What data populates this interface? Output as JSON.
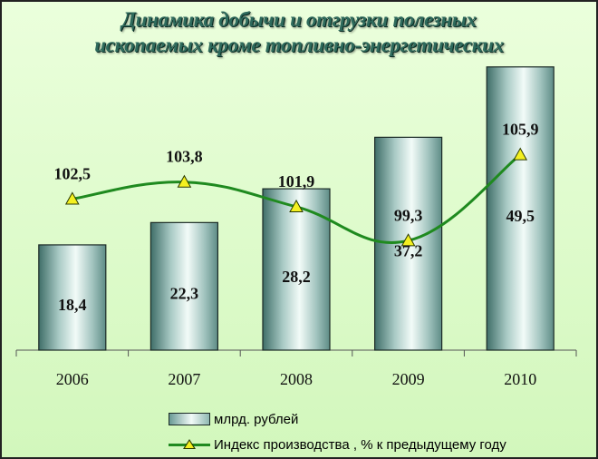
{
  "chart_data": {
    "title_line1": "Динамика добычи и отгрузки полезных",
    "title_line2": "ископаемых кроме топливно-энергетических",
    "type": "bar",
    "categories": [
      "2006",
      "2007",
      "2008",
      "2009",
      "2010"
    ],
    "bar_series": {
      "name": "млрд. рублей",
      "values": [
        18.4,
        22.3,
        28.2,
        37.2,
        49.5
      ],
      "labels": [
        "18,4",
        "22,3",
        "28,2",
        "37,2",
        "49,5"
      ]
    },
    "line_series": {
      "name": "Индекс производства , % к предыдущему году",
      "type": "line",
      "values": [
        102.5,
        103.8,
        101.9,
        99.3,
        105.9
      ],
      "labels": [
        "102,5",
        "103,8",
        "101,9",
        "99,3",
        "105,9"
      ]
    },
    "bar_ylim": [
      0,
      52
    ],
    "line_ylim": [
      92,
      115
    ],
    "legend_position": "bottom",
    "grid": false,
    "colors": {
      "background": "#d9f9c6",
      "title": "#2e6a5c",
      "bar_dark": "#3f6e68",
      "bar_light": "#f2fbf8",
      "line": "#1f8a1f",
      "marker_fill": "#f4f020",
      "marker_edge": "#2a3a00"
    }
  }
}
